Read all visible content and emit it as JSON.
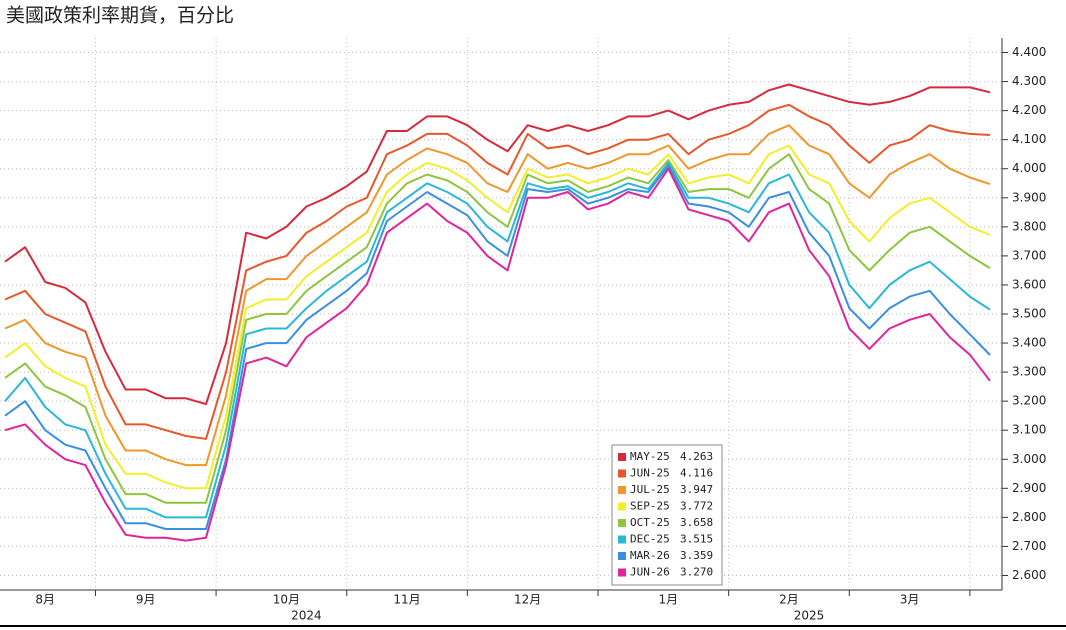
{
  "chart_data": {
    "type": "line",
    "title": "美國政策利率期貨，百分比",
    "categories": [
      null,
      null,
      "8月",
      null,
      null,
      null,
      null,
      "9月",
      null,
      null,
      null,
      null,
      null,
      null,
      "10月",
      null,
      null,
      null,
      null,
      null,
      "11月",
      null,
      null,
      null,
      null,
      null,
      "12月",
      null,
      null,
      null,
      null,
      null,
      null,
      "1月",
      null,
      null,
      null,
      null,
      null,
      "2月",
      null,
      null,
      null,
      null,
      null,
      "3月",
      null,
      null,
      null,
      null
    ],
    "year_labels": [
      {
        "at": 14,
        "label": "2024"
      },
      {
        "at": 39,
        "label": "2025"
      }
    ],
    "ylim": [
      2.55,
      4.45
    ],
    "yticks": [
      {
        "value": 2.6,
        "label": "2.600"
      },
      {
        "value": 2.7,
        "label": "2.700"
      },
      {
        "value": 2.8,
        "label": "2.800"
      },
      {
        "value": 2.9,
        "label": "2.900"
      },
      {
        "value": 3.0,
        "label": "3.000"
      },
      {
        "value": 3.1,
        "label": "3.100"
      },
      {
        "value": 3.2,
        "label": "3.200"
      },
      {
        "value": 3.3,
        "label": "3.300"
      },
      {
        "value": 3.4,
        "label": "3.400"
      },
      {
        "value": 3.5,
        "label": "3.500"
      },
      {
        "value": 3.6,
        "label": "3.600"
      },
      {
        "value": 3.7,
        "label": "3.700"
      },
      {
        "value": 3.8,
        "label": "3.800"
      },
      {
        "value": 3.9,
        "label": "3.900"
      },
      {
        "value": 4.0,
        "label": "4.000"
      },
      {
        "value": 4.1,
        "label": "4.100"
      },
      {
        "value": 4.2,
        "label": "4.200"
      },
      {
        "value": 4.3,
        "label": "4.300"
      },
      {
        "value": 4.4,
        "label": "4.400"
      }
    ],
    "grid": true,
    "series": [
      {
        "name": "MAY-25",
        "legend_value": "4.263",
        "color": "#d62a3c",
        "values": [
          3.68,
          3.73,
          3.61,
          3.59,
          3.54,
          3.37,
          3.24,
          3.24,
          3.21,
          3.21,
          3.19,
          3.4,
          3.78,
          3.76,
          3.8,
          3.87,
          3.9,
          3.94,
          3.99,
          4.13,
          4.13,
          4.18,
          4.18,
          4.15,
          4.1,
          4.06,
          4.15,
          4.13,
          4.15,
          4.13,
          4.15,
          4.18,
          4.18,
          4.2,
          4.17,
          4.2,
          4.22,
          4.23,
          4.27,
          4.29,
          4.27,
          4.25,
          4.23,
          4.22,
          4.23,
          4.25,
          4.28,
          4.28,
          4.28,
          4.263
        ]
      },
      {
        "name": "JUN-25",
        "legend_value": "4.116",
        "color": "#e8572a",
        "values": [
          3.55,
          3.58,
          3.5,
          3.47,
          3.44,
          3.25,
          3.12,
          3.12,
          3.1,
          3.08,
          3.07,
          3.3,
          3.65,
          3.68,
          3.7,
          3.78,
          3.82,
          3.87,
          3.9,
          4.05,
          4.08,
          4.12,
          4.12,
          4.08,
          4.02,
          3.98,
          4.12,
          4.07,
          4.08,
          4.05,
          4.07,
          4.1,
          4.1,
          4.12,
          4.05,
          4.1,
          4.12,
          4.15,
          4.2,
          4.22,
          4.18,
          4.15,
          4.08,
          4.02,
          4.08,
          4.1,
          4.15,
          4.13,
          4.12,
          4.116
        ]
      },
      {
        "name": "JUL-25",
        "legend_value": "3.947",
        "color": "#f0962a",
        "values": [
          3.45,
          3.48,
          3.4,
          3.37,
          3.35,
          3.15,
          3.03,
          3.03,
          3.0,
          2.98,
          2.98,
          3.22,
          3.58,
          3.62,
          3.62,
          3.7,
          3.75,
          3.8,
          3.85,
          3.98,
          4.03,
          4.07,
          4.05,
          4.02,
          3.95,
          3.92,
          4.05,
          4.0,
          4.02,
          4.0,
          4.02,
          4.05,
          4.05,
          4.08,
          4.0,
          4.03,
          4.05,
          4.05,
          4.12,
          4.15,
          4.08,
          4.05,
          3.95,
          3.9,
          3.98,
          4.02,
          4.05,
          4.0,
          3.97,
          3.947
        ]
      },
      {
        "name": "SEP-25",
        "legend_value": "3.772",
        "color": "#f2ee2a",
        "values": [
          3.35,
          3.4,
          3.32,
          3.28,
          3.25,
          3.05,
          2.95,
          2.95,
          2.92,
          2.9,
          2.9,
          3.15,
          3.52,
          3.55,
          3.55,
          3.63,
          3.68,
          3.73,
          3.78,
          3.92,
          3.98,
          4.02,
          4.0,
          3.96,
          3.9,
          3.85,
          4.0,
          3.97,
          3.98,
          3.95,
          3.97,
          4.0,
          3.98,
          4.05,
          3.95,
          3.97,
          3.98,
          3.95,
          4.05,
          4.08,
          3.98,
          3.95,
          3.82,
          3.75,
          3.83,
          3.88,
          3.9,
          3.85,
          3.8,
          3.772
        ]
      },
      {
        "name": "OCT-25",
        "legend_value": "3.658",
        "color": "#8cc63e",
        "values": [
          3.28,
          3.33,
          3.25,
          3.22,
          3.18,
          3.0,
          2.88,
          2.88,
          2.85,
          2.85,
          2.85,
          3.1,
          3.48,
          3.5,
          3.5,
          3.58,
          3.63,
          3.68,
          3.73,
          3.88,
          3.95,
          3.98,
          3.96,
          3.92,
          3.85,
          3.8,
          3.98,
          3.95,
          3.96,
          3.92,
          3.94,
          3.97,
          3.95,
          4.03,
          3.92,
          3.93,
          3.93,
          3.9,
          4.0,
          4.05,
          3.93,
          3.88,
          3.72,
          3.65,
          3.72,
          3.78,
          3.8,
          3.75,
          3.7,
          3.658
        ]
      },
      {
        "name": "DEC-25",
        "legend_value": "3.515",
        "color": "#29b8d8",
        "values": [
          3.2,
          3.28,
          3.18,
          3.12,
          3.1,
          2.95,
          2.83,
          2.83,
          2.8,
          2.8,
          2.8,
          3.05,
          3.43,
          3.45,
          3.45,
          3.52,
          3.58,
          3.63,
          3.68,
          3.85,
          3.9,
          3.95,
          3.92,
          3.88,
          3.8,
          3.75,
          3.95,
          3.93,
          3.94,
          3.9,
          3.92,
          3.95,
          3.93,
          4.02,
          3.9,
          3.9,
          3.88,
          3.85,
          3.95,
          3.98,
          3.85,
          3.78,
          3.6,
          3.52,
          3.6,
          3.65,
          3.68,
          3.62,
          3.56,
          3.515
        ]
      },
      {
        "name": "MAR-26",
        "legend_value": "3.359",
        "color": "#3a8fe0",
        "values": [
          3.15,
          3.2,
          3.1,
          3.05,
          3.03,
          2.9,
          2.78,
          2.78,
          2.76,
          2.76,
          2.76,
          3.0,
          3.38,
          3.4,
          3.4,
          3.48,
          3.53,
          3.58,
          3.64,
          3.82,
          3.87,
          3.92,
          3.88,
          3.84,
          3.75,
          3.7,
          3.93,
          3.92,
          3.93,
          3.88,
          3.9,
          3.93,
          3.92,
          4.01,
          3.88,
          3.87,
          3.85,
          3.8,
          3.9,
          3.92,
          3.78,
          3.7,
          3.52,
          3.45,
          3.52,
          3.56,
          3.58,
          3.5,
          3.43,
          3.359
        ]
      },
      {
        "name": "JUN-26",
        "legend_value": "3.270",
        "color": "#e0259b",
        "values": [
          3.1,
          3.12,
          3.05,
          3.0,
          2.98,
          2.85,
          2.74,
          2.73,
          2.73,
          2.72,
          2.73,
          2.98,
          3.33,
          3.35,
          3.32,
          3.42,
          3.47,
          3.52,
          3.6,
          3.78,
          3.83,
          3.88,
          3.82,
          3.78,
          3.7,
          3.65,
          3.9,
          3.9,
          3.92,
          3.86,
          3.88,
          3.92,
          3.9,
          4.0,
          3.86,
          3.84,
          3.82,
          3.75,
          3.85,
          3.88,
          3.72,
          3.63,
          3.45,
          3.38,
          3.45,
          3.48,
          3.5,
          3.42,
          3.36,
          3.27
        ]
      }
    ]
  }
}
